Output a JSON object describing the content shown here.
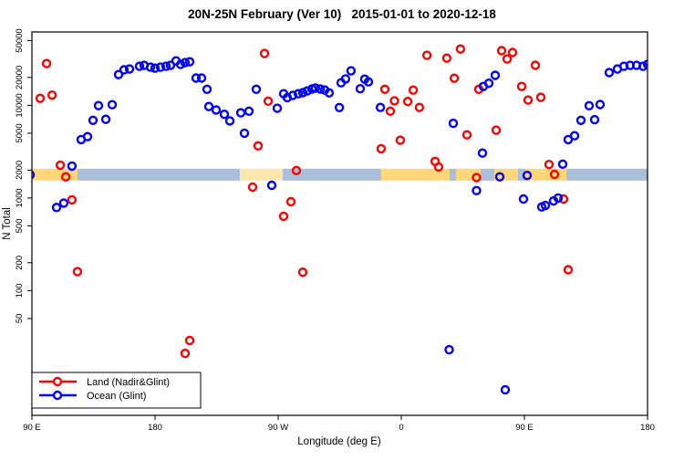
{
  "chart_data": {
    "type": "scatter",
    "title": "20N-25N February (Ver 10)   2015-01-01 to 2020-12-18",
    "xlabel": "Longitude (deg E)",
    "ylabel": "N Total",
    "grid": false,
    "x_axis": {
      "lim": [
        90,
        540
      ],
      "ticks": [
        {
          "v": 90,
          "label": "90 E"
        },
        {
          "v": 180,
          "label": "180"
        },
        {
          "v": 270,
          "label": "90 W"
        },
        {
          "v": 360,
          "label": "0"
        },
        {
          "v": 450,
          "label": "90 E"
        },
        {
          "v": 540,
          "label": "180"
        }
      ]
    },
    "y_axis": {
      "scale": "log",
      "lim": [
        4.5,
        62000
      ],
      "ticks": [
        {
          "v": 50,
          "label": "50"
        },
        {
          "v": 100,
          "label": "100"
        },
        {
          "v": 200,
          "label": "200"
        },
        {
          "v": 500,
          "label": "500"
        },
        {
          "v": 1000,
          "label": "1000"
        },
        {
          "v": 2000,
          "label": "2000"
        },
        {
          "v": 5000,
          "label": "5000"
        },
        {
          "v": 10000,
          "label": "10000"
        },
        {
          "v": 20000,
          "label": "20000"
        },
        {
          "v": 50000,
          "label": "50000"
        }
      ]
    },
    "band": {
      "v_top": 2070,
      "v_bottom": 1540,
      "colors": {
        "land": "#FFD778",
        "ocean": "#A9BFDC"
      },
      "segments": [
        {
          "from": 90,
          "to": 123.3,
          "fill": "land",
          "opacity": 1
        },
        {
          "from": 123.3,
          "to": 242,
          "fill": "ocean",
          "opacity": 1
        },
        {
          "from": 242,
          "to": 273.3,
          "fill": "land",
          "opacity": 0.62
        },
        {
          "from": 273.3,
          "to": 345.3,
          "fill": "ocean",
          "opacity": 1
        },
        {
          "from": 345.3,
          "to": 395.3,
          "fill": "land",
          "opacity": 1
        },
        {
          "from": 395.3,
          "to": 400,
          "fill": "ocean",
          "opacity": 1
        },
        {
          "from": 400,
          "to": 418,
          "fill": "land",
          "opacity": 1
        },
        {
          "from": 418,
          "to": 428,
          "fill": "ocean",
          "opacity": 1
        },
        {
          "from": 428,
          "to": 445.3,
          "fill": "land",
          "opacity": 1
        },
        {
          "from": 445.3,
          "to": 450.7,
          "fill": "ocean",
          "opacity": 1
        },
        {
          "from": 450.7,
          "to": 480.7,
          "fill": "land",
          "opacity": 1
        },
        {
          "from": 480.7,
          "to": 540,
          "fill": "ocean",
          "opacity": 1
        }
      ]
    },
    "series": [
      {
        "name": "Land (Nadir&Glint)",
        "color": "#FF0000",
        "marker": "open-circle",
        "points": [
          [
            100.7,
            28300
          ],
          [
            96,
            11900
          ],
          [
            104.7,
            12900
          ],
          [
            110.7,
            2260
          ],
          [
            114.7,
            1690
          ],
          [
            119.3,
            955
          ],
          [
            123.3,
            160
          ],
          [
            205.3,
            29
          ],
          [
            202,
            21
          ],
          [
            260,
            36300
          ],
          [
            262.7,
            11100
          ],
          [
            255.3,
            3650
          ],
          [
            283.3,
            1980
          ],
          [
            251.3,
            1310
          ],
          [
            279.3,
            910
          ],
          [
            274,
            635
          ],
          [
            288,
            158
          ],
          [
            348,
            14900
          ],
          [
            355,
            11200
          ],
          [
            364.7,
            11000
          ],
          [
            368.7,
            14600
          ],
          [
            373.3,
            9500
          ],
          [
            378.7,
            34700
          ],
          [
            393.3,
            32300
          ],
          [
            398.7,
            19600
          ],
          [
            352,
            8650
          ],
          [
            359.3,
            4200
          ],
          [
            345.3,
            3400
          ],
          [
            384.7,
            2480
          ],
          [
            387.3,
            2160
          ],
          [
            403.3,
            40600
          ],
          [
            433.3,
            38900
          ],
          [
            441.3,
            37200
          ],
          [
            437.3,
            31700
          ],
          [
            458,
            27100
          ],
          [
            416.7,
            14900
          ],
          [
            448,
            16000
          ],
          [
            452.7,
            11400
          ],
          [
            462,
            12200
          ],
          [
            408,
            4800
          ],
          [
            429.3,
            5400
          ],
          [
            415,
            1660
          ],
          [
            468,
            2300
          ],
          [
            472,
            1800
          ],
          [
            478.7,
            975
          ],
          [
            482,
            168
          ]
        ]
      },
      {
        "name": "Ocean (Glint)",
        "color": "#0000FF",
        "marker": "open-circle",
        "points": [
          [
            88.7,
            1780
          ],
          [
            119.3,
            2210
          ],
          [
            108,
            790
          ],
          [
            113.3,
            880
          ],
          [
            126,
            4270
          ],
          [
            130.7,
            4590
          ],
          [
            134.7,
            6900
          ],
          [
            144,
            7060
          ],
          [
            138.7,
            9930
          ],
          [
            148.7,
            10150
          ],
          [
            153.3,
            21500
          ],
          [
            157.3,
            24200
          ],
          [
            161.3,
            24700
          ],
          [
            168.7,
            26400
          ],
          [
            172,
            27000
          ],
          [
            176.7,
            25800
          ],
          [
            180,
            25200
          ],
          [
            184,
            25800
          ],
          [
            188,
            26400
          ],
          [
            191.3,
            27000
          ],
          [
            195.3,
            30200
          ],
          [
            198.7,
            27700
          ],
          [
            202,
            28900
          ],
          [
            205.3,
            29500
          ],
          [
            210,
            19700
          ],
          [
            214,
            19700
          ],
          [
            218,
            14900
          ],
          [
            219.3,
            9700
          ],
          [
            224.7,
            8900
          ],
          [
            230.7,
            8000
          ],
          [
            234.7,
            6800
          ],
          [
            242.7,
            8300
          ],
          [
            248.7,
            8650
          ],
          [
            245.3,
            5000
          ],
          [
            254,
            14900
          ],
          [
            274,
            13350
          ],
          [
            276.7,
            12100
          ],
          [
            280.7,
            12800
          ],
          [
            284.7,
            13350
          ],
          [
            288,
            13700
          ],
          [
            291.3,
            14300
          ],
          [
            294.7,
            15000
          ],
          [
            297.3,
            15350
          ],
          [
            300.7,
            15000
          ],
          [
            304,
            14650
          ],
          [
            307.3,
            13650
          ],
          [
            314.7,
            9480
          ],
          [
            269.3,
            9300
          ],
          [
            265.3,
            1370
          ],
          [
            316,
            17500
          ],
          [
            319.3,
            19300
          ],
          [
            323.3,
            23600
          ],
          [
            333.3,
            19200
          ],
          [
            336,
            17900
          ],
          [
            330,
            15100
          ],
          [
            344.7,
            9500
          ],
          [
            398,
            6400
          ],
          [
            420,
            16000
          ],
          [
            424,
            17300
          ],
          [
            428.7,
            21100
          ],
          [
            419.3,
            3050
          ],
          [
            432,
            1690
          ],
          [
            452,
            1750
          ],
          [
            415,
            1200
          ],
          [
            449.3,
            975
          ],
          [
            462.7,
            800
          ],
          [
            465.3,
            830
          ],
          [
            395,
            23
          ],
          [
            436,
            8.5
          ],
          [
            478,
            2320
          ],
          [
            471.3,
            930
          ],
          [
            474.7,
            1000
          ],
          [
            491.3,
            6900
          ],
          [
            501.3,
            7000
          ],
          [
            497.3,
            9900
          ],
          [
            505.3,
            10200
          ],
          [
            482,
            4270
          ],
          [
            486.7,
            4700
          ],
          [
            512,
            22600
          ],
          [
            518,
            24700
          ],
          [
            522.7,
            26400
          ],
          [
            527.3,
            27000
          ],
          [
            532,
            27000
          ],
          [
            536.7,
            26400
          ],
          [
            540,
            27700
          ]
        ]
      }
    ],
    "legend": {
      "position": "bottom-left",
      "items": [
        "Land (Nadir&Glint)",
        "Ocean (Glint)"
      ]
    }
  }
}
